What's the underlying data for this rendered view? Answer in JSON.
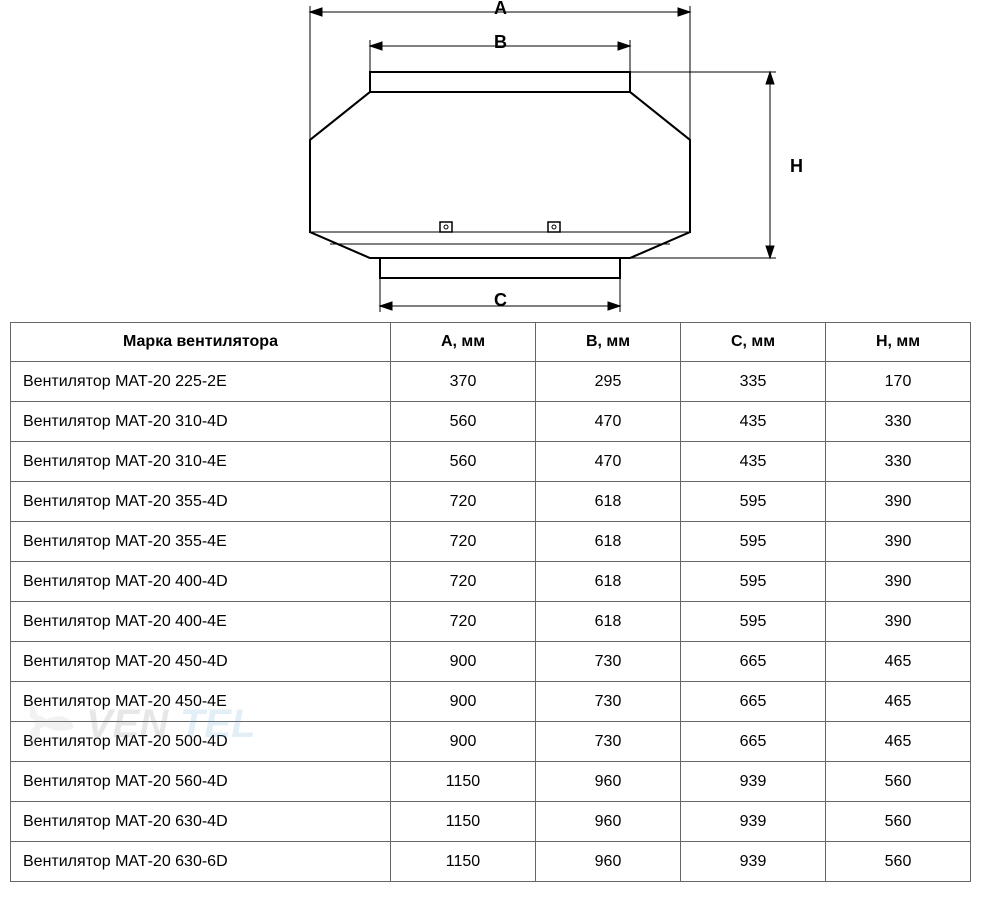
{
  "diagram": {
    "labels": {
      "A": "A",
      "B": "B",
      "C": "C",
      "H": "H"
    },
    "stroke_color": "#000000",
    "stroke_width_main": 2,
    "stroke_width_dim": 1,
    "fill_color": "#ffffff"
  },
  "table": {
    "columns": [
      "Марка вентилятора",
      "А, мм",
      "В, мм",
      "С, мм",
      "Н, мм"
    ],
    "rows": [
      [
        "Вентилятор МАТ-20 225-2E",
        "370",
        "295",
        "335",
        "170"
      ],
      [
        "Вентилятор МАТ-20 310-4D",
        "560",
        "470",
        "435",
        "330"
      ],
      [
        "Вентилятор МАТ-20 310-4E",
        "560",
        "470",
        "435",
        "330"
      ],
      [
        "Вентилятор МАТ-20 355-4D",
        "720",
        "618",
        "595",
        "390"
      ],
      [
        "Вентилятор МАТ-20 355-4E",
        "720",
        "618",
        "595",
        "390"
      ],
      [
        "Вентилятор МАТ-20 400-4D",
        "720",
        "618",
        "595",
        "390"
      ],
      [
        "Вентилятор МАТ-20 400-4E",
        "720",
        "618",
        "595",
        "390"
      ],
      [
        "Вентилятор МАТ-20 450-4D",
        "900",
        "730",
        "665",
        "465"
      ],
      [
        "Вентилятор МАТ-20 450-4E",
        "900",
        "730",
        "665",
        "465"
      ],
      [
        "Вентилятор МАТ-20 500-4D",
        "900",
        "730",
        "665",
        "465"
      ],
      [
        "Вентилятор МАТ-20 560-4D",
        "1150",
        "960",
        "939",
        "560"
      ],
      [
        "Вентилятор МАТ-20 630-4D",
        "1150",
        "960",
        "939",
        "560"
      ],
      [
        "Вентилятор МАТ-20 630-6D",
        "1150",
        "960",
        "939",
        "560"
      ]
    ]
  },
  "watermark": {
    "text_dark": "VEN",
    "text_blue": "TEL",
    "color_dark": "#808080",
    "color_blue": "#6aa8d8",
    "fan_color": "#b0b0b0"
  },
  "style": {
    "font_family": "Arial",
    "header_fontsize": 16,
    "cell_fontsize": 16,
    "border_color": "#666666",
    "background": "#ffffff",
    "text_color": "#000000"
  }
}
